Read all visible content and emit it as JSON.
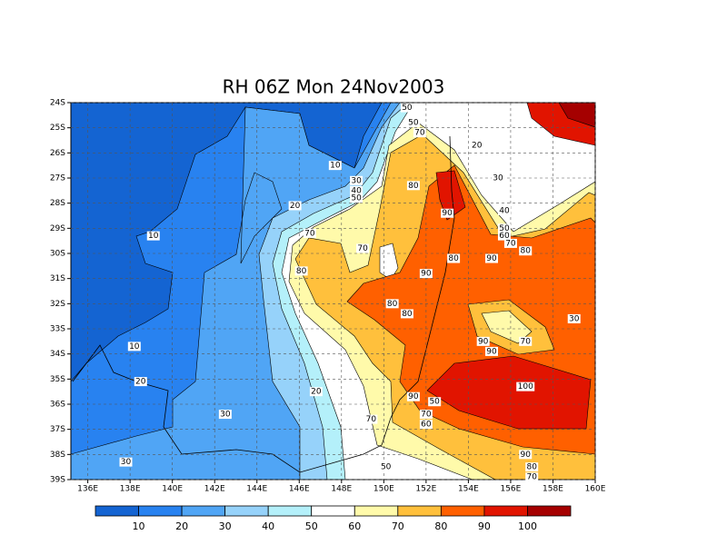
{
  "chart_data": {
    "type": "contour-map",
    "title": "RH 06Z Mon 24Nov2003",
    "xlim": [
      135.2,
      160
    ],
    "ylim": [
      -24,
      -39
    ],
    "xticks": [
      {
        "value": 136,
        "label": "136E"
      },
      {
        "value": 138,
        "label": "138E"
      },
      {
        "value": 140,
        "label": "140E"
      },
      {
        "value": 142,
        "label": "142E"
      },
      {
        "value": 144,
        "label": "144E"
      },
      {
        "value": 146,
        "label": "146E"
      },
      {
        "value": 148,
        "label": "148E"
      },
      {
        "value": 150,
        "label": "150E"
      },
      {
        "value": 152,
        "label": "152E"
      },
      {
        "value": 154,
        "label": "154E"
      },
      {
        "value": 156,
        "label": "156E"
      },
      {
        "value": 158,
        "label": "158E"
      },
      {
        "value": 160,
        "label": "160E"
      }
    ],
    "yticks": [
      {
        "value": -24,
        "label": "24S"
      },
      {
        "value": -25,
        "label": "25S"
      },
      {
        "value": -26,
        "label": "26S"
      },
      {
        "value": -27,
        "label": "27S"
      },
      {
        "value": -28,
        "label": "28S"
      },
      {
        "value": -29,
        "label": "29S"
      },
      {
        "value": -30,
        "label": "30S"
      },
      {
        "value": -31,
        "label": "31S"
      },
      {
        "value": -32,
        "label": "32S"
      },
      {
        "value": -33,
        "label": "33S"
      },
      {
        "value": -34,
        "label": "34S"
      },
      {
        "value": -35,
        "label": "35S"
      },
      {
        "value": -36,
        "label": "36S"
      },
      {
        "value": -37,
        "label": "37S"
      },
      {
        "value": -38,
        "label": "38S"
      },
      {
        "value": -39,
        "label": "39S"
      }
    ],
    "grid": true,
    "colorbar": {
      "levels": [
        10,
        20,
        30,
        40,
        50,
        60,
        70,
        80,
        90,
        100
      ],
      "colors": [
        "#1464d2",
        "#2882f0",
        "#50a5f5",
        "#96d2fa",
        "#b4f0fa",
        "#ffffff",
        "#fffaaa",
        "#ffc03c",
        "#ff6000",
        "#e11400",
        "#a50000"
      ]
    },
    "contour_labels": [
      {
        "value": 50,
        "lon": 151.1,
        "lat": -24.2
      },
      {
        "value": 50,
        "lon": 151.4,
        "lat": -24.8
      },
      {
        "value": 70,
        "lon": 151.7,
        "lat": -25.2
      },
      {
        "value": 20,
        "lon": 154.4,
        "lat": -25.7
      },
      {
        "value": 10,
        "lon": 147.7,
        "lat": -26.5
      },
      {
        "value": 30,
        "lon": 148.7,
        "lat": -27.1
      },
      {
        "value": 40,
        "lon": 148.7,
        "lat": -27.5
      },
      {
        "value": 50,
        "lon": 148.7,
        "lat": -27.8
      },
      {
        "value": 80,
        "lon": 151.4,
        "lat": -27.3
      },
      {
        "value": 30,
        "lon": 155.4,
        "lat": -27.0
      },
      {
        "value": 20,
        "lon": 145.8,
        "lat": -28.1
      },
      {
        "value": 40,
        "lon": 155.7,
        "lat": -28.3
      },
      {
        "value": 90,
        "lon": 153.0,
        "lat": -28.4
      },
      {
        "value": 50,
        "lon": 155.7,
        "lat": -29.0
      },
      {
        "value": 60,
        "lon": 155.7,
        "lat": -29.3
      },
      {
        "value": 70,
        "lon": 156.0,
        "lat": -29.6
      },
      {
        "value": 80,
        "lon": 156.7,
        "lat": -29.9
      },
      {
        "value": 10,
        "lon": 139.1,
        "lat": -29.3
      },
      {
        "value": 70,
        "lon": 146.5,
        "lat": -29.2
      },
      {
        "value": 70,
        "lon": 149.0,
        "lat": -29.8
      },
      {
        "value": 80,
        "lon": 153.3,
        "lat": -30.2
      },
      {
        "value": 90,
        "lon": 155.1,
        "lat": -30.2
      },
      {
        "value": 80,
        "lon": 146.1,
        "lat": -30.7
      },
      {
        "value": 90,
        "lon": 152.0,
        "lat": -30.8
      },
      {
        "value": 80,
        "lon": 150.4,
        "lat": -32.0
      },
      {
        "value": 80,
        "lon": 151.1,
        "lat": -32.4
      },
      {
        "value": 30,
        "lon": 159.0,
        "lat": -32.6
      },
      {
        "value": 90,
        "lon": 154.7,
        "lat": -33.5
      },
      {
        "value": 70,
        "lon": 156.7,
        "lat": -33.5
      },
      {
        "value": 90,
        "lon": 155.1,
        "lat": -33.9
      },
      {
        "value": 10,
        "lon": 138.2,
        "lat": -33.7
      },
      {
        "value": 20,
        "lon": 138.5,
        "lat": -35.1
      },
      {
        "value": 100,
        "lon": 156.7,
        "lat": -35.3
      },
      {
        "value": 20,
        "lon": 146.8,
        "lat": -35.5
      },
      {
        "value": 90,
        "lon": 151.4,
        "lat": -35.7
      },
      {
        "value": 50,
        "lon": 152.4,
        "lat": -35.9
      },
      {
        "value": 30,
        "lon": 142.5,
        "lat": -36.4
      },
      {
        "value": 70,
        "lon": 152.0,
        "lat": -36.4
      },
      {
        "value": 70,
        "lon": 149.4,
        "lat": -36.6
      },
      {
        "value": 60,
        "lon": 152.0,
        "lat": -36.8
      },
      {
        "value": 90,
        "lon": 156.7,
        "lat": -38.0
      },
      {
        "value": 30,
        "lon": 137.8,
        "lat": -38.3
      },
      {
        "value": 80,
        "lon": 157.0,
        "lat": -38.5
      },
      {
        "value": 50,
        "lon": 150.1,
        "lat": -38.5
      },
      {
        "value": 70,
        "lon": 157.0,
        "lat": -38.9
      }
    ]
  }
}
